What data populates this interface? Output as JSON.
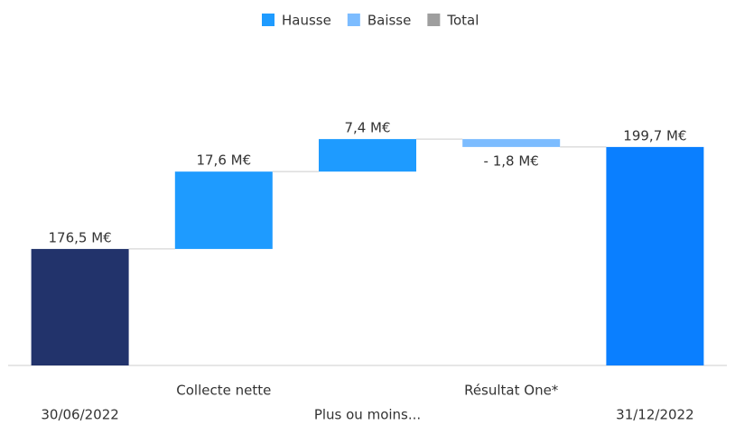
{
  "chart_data": {
    "type": "waterfall",
    "categories": [
      "30/06/2022",
      "Collecte nette",
      "Plus ou moins...",
      "Résultat One*",
      "31/12/2022"
    ],
    "values": [
      176.5,
      17.6,
      7.4,
      -1.8,
      199.7
    ],
    "value_labels": [
      "176,5 M€",
      "17,6 M€",
      "7,4 M€",
      "- 1,8 M€",
      "199,7 M€"
    ],
    "totals": [
      true,
      false,
      false,
      false,
      true
    ],
    "bar_colors": [
      "#22336b",
      "#1e9bff",
      "#1e9bff",
      "#7cbcff",
      "#0a7fff"
    ],
    "series": [
      {
        "name": "Hausse",
        "color": "#1e9bff"
      },
      {
        "name": "Baisse",
        "color": "#7cbcff"
      },
      {
        "name": "Total",
        "color": "#9e9e9e"
      }
    ],
    "ylim": [
      150,
      220
    ]
  }
}
